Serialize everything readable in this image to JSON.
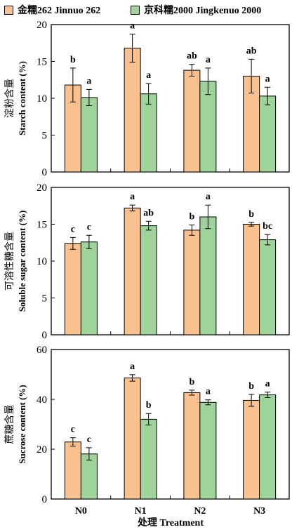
{
  "legend": {
    "s1": "金糯262 Jinnuo 262",
    "s2": "京科糯2000 Jingkenuo 2000",
    "colors": [
      "#f8c18f",
      "#9ed39a"
    ]
  },
  "xlabel": "处理 Treatment",
  "chart_data": [
    {
      "type": "bar",
      "ylabel": "淀粉含量 Starch content (%)",
      "ylim": [
        0,
        20
      ],
      "yticks": [
        0,
        5,
        10,
        15,
        20
      ],
      "categories": [
        "N0",
        "N1",
        "N2",
        "N3"
      ],
      "series": [
        {
          "name": "金糯262 Jinnuo 262",
          "values": [
            11.8,
            16.8,
            13.8,
            13.0
          ],
          "err": [
            2.3,
            1.9,
            0.8,
            2.3
          ],
          "letters": [
            "b",
            "a",
            "ab",
            "ab"
          ]
        },
        {
          "name": "京科糯2000 Jingkenuo 2000",
          "values": [
            10.1,
            10.6,
            12.3,
            10.3
          ],
          "err": [
            1.1,
            1.4,
            1.8,
            1.2
          ],
          "letters": [
            "a",
            "a",
            "a",
            "a"
          ]
        }
      ]
    },
    {
      "type": "bar",
      "ylabel": "可溶性糖含量 Soluble sugar content (%)",
      "ylim": [
        0,
        20
      ],
      "yticks": [
        0,
        5,
        10,
        15,
        20
      ],
      "categories": [
        "N0",
        "N1",
        "N2",
        "N3"
      ],
      "series": [
        {
          "name": "金糯262 Jinnuo 262",
          "values": [
            12.4,
            17.2,
            14.2,
            15.0
          ],
          "err": [
            0.8,
            0.4,
            0.7,
            0.25
          ],
          "letters": [
            "c",
            "a",
            "b",
            "b"
          ]
        },
        {
          "name": "京科糯2000 Jingkenuo 2000",
          "values": [
            12.6,
            14.8,
            16.0,
            12.9
          ],
          "err": [
            0.9,
            0.6,
            1.6,
            0.7
          ],
          "letters": [
            "c",
            "ab",
            "a",
            "bc"
          ]
        }
      ]
    },
    {
      "type": "bar",
      "ylabel": "蔗糖含量 Sucrose content (%)",
      "ylim": [
        0,
        60
      ],
      "yticks": [
        0,
        20,
        40,
        60
      ],
      "categories": [
        "N0",
        "N1",
        "N2",
        "N3"
      ],
      "series": [
        {
          "name": "金糯262 Jinnuo 262",
          "values": [
            22.9,
            48.6,
            42.7,
            39.6
          ],
          "err": [
            1.7,
            1.3,
            1.0,
            2.4
          ],
          "letters": [
            "c",
            "a",
            "b",
            "b"
          ]
        },
        {
          "name": "京科糯2000 Jingkenuo 2000",
          "values": [
            18.1,
            32.0,
            38.8,
            41.8
          ],
          "err": [
            2.5,
            2.3,
            1.0,
            1.1
          ],
          "letters": [
            "c",
            "b",
            "a",
            "a"
          ]
        }
      ]
    }
  ]
}
